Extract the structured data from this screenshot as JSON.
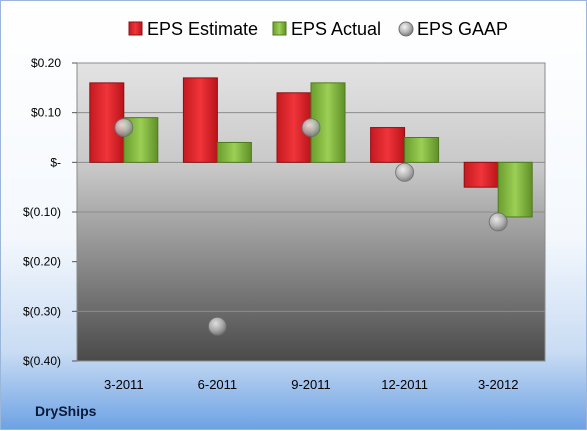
{
  "company": "DryShips",
  "chart_data": {
    "type": "bar",
    "categories": [
      "3-2011",
      "6-2011",
      "9-2011",
      "12-2011",
      "3-2012"
    ],
    "series": [
      {
        "name": "EPS Estimate",
        "kind": "bar",
        "color": "#e0242b",
        "values": [
          0.16,
          0.17,
          0.14,
          0.07,
          -0.05
        ]
      },
      {
        "name": "EPS Actual",
        "kind": "bar",
        "color": "#7bb33a",
        "values": [
          0.09,
          0.04,
          0.16,
          0.05,
          -0.11
        ]
      },
      {
        "name": "EPS GAAP",
        "kind": "marker",
        "color": "#b0b0b0",
        "values": [
          0.07,
          -0.33,
          0.07,
          -0.02,
          -0.12
        ]
      }
    ],
    "y_ticks": [
      {
        "value": 0.2,
        "label": "$0.20"
      },
      {
        "value": 0.1,
        "label": "$0.10"
      },
      {
        "value": 0.0,
        "label": "$-"
      },
      {
        "value": -0.1,
        "label": "$(0.10)"
      },
      {
        "value": -0.2,
        "label": "$(0.20)"
      },
      {
        "value": -0.3,
        "label": "$(0.30)"
      },
      {
        "value": -0.4,
        "label": "$(0.40)"
      }
    ],
    "ylim": [
      -0.4,
      0.2
    ],
    "grid": true,
    "legend": "top"
  }
}
